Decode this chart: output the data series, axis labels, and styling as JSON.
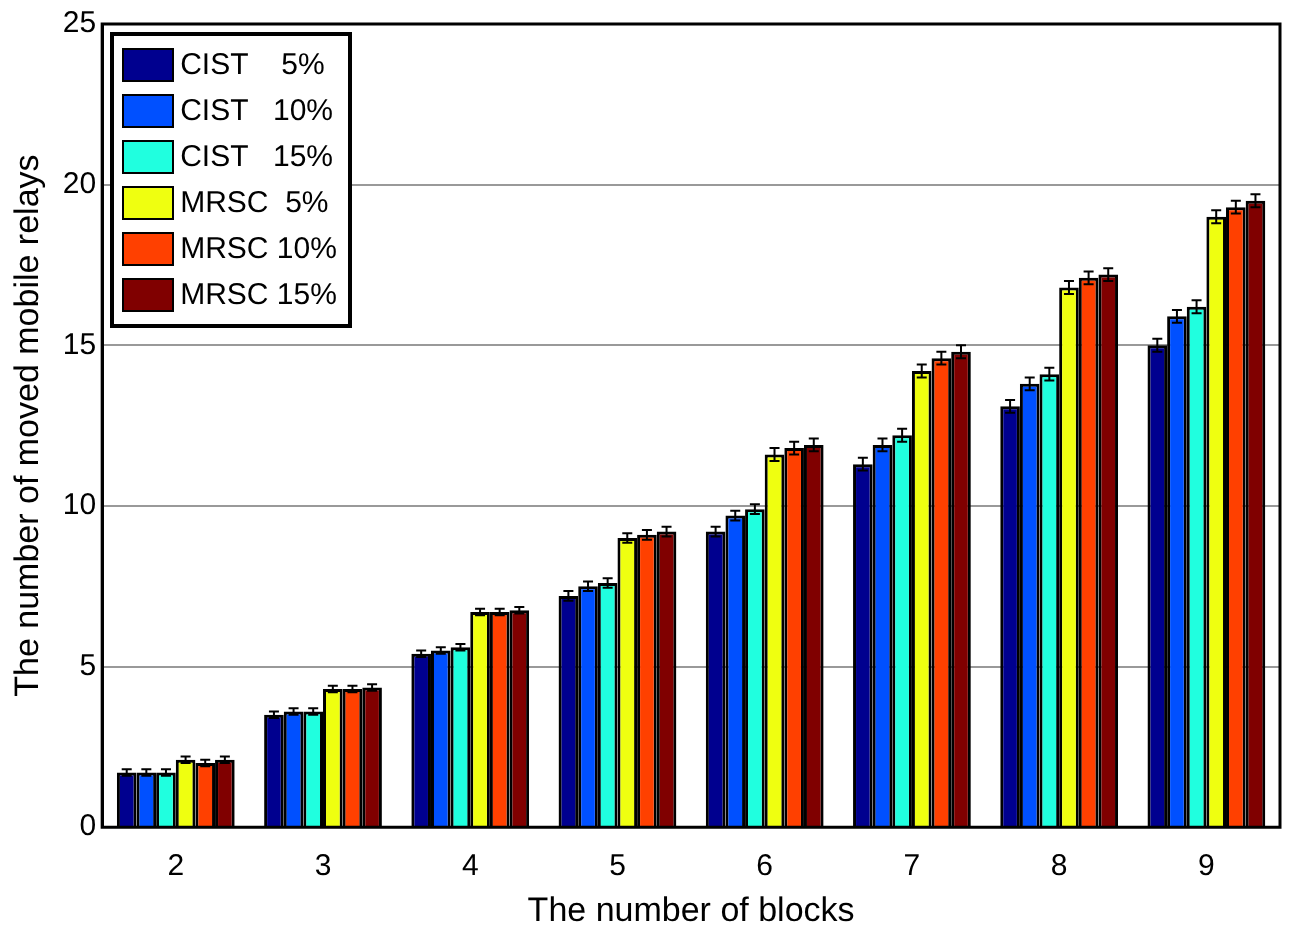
{
  "chart_data": {
    "type": "bar",
    "xlabel": "The number of blocks",
    "ylabel": "The number of moved mobile relays",
    "categories": [
      "2",
      "3",
      "4",
      "5",
      "6",
      "7",
      "8",
      "9"
    ],
    "series": [
      {
        "name": "CIST    5%",
        "color": "#00008f",
        "values": [
          1.7,
          3.5,
          5.4,
          7.2,
          9.2,
          11.3,
          13.1,
          15.0
        ],
        "errors": [
          0.1,
          0.1,
          0.1,
          0.15,
          0.15,
          0.2,
          0.2,
          0.2
        ]
      },
      {
        "name": "CIST   10%",
        "color": "#0050ff",
        "values": [
          1.7,
          3.6,
          5.5,
          7.5,
          9.7,
          11.9,
          13.8,
          15.9
        ],
        "errors": [
          0.1,
          0.1,
          0.1,
          0.15,
          0.15,
          0.2,
          0.2,
          0.2
        ]
      },
      {
        "name": "CIST   15%",
        "color": "#20ffdf",
        "values": [
          1.7,
          3.6,
          5.6,
          7.6,
          9.9,
          12.2,
          14.1,
          16.2
        ],
        "errors": [
          0.1,
          0.1,
          0.1,
          0.15,
          0.15,
          0.2,
          0.2,
          0.2
        ]
      },
      {
        "name": "MRSC  5%",
        "color": "#efff10",
        "values": [
          2.1,
          4.3,
          6.7,
          9.0,
          11.6,
          14.2,
          16.8,
          19.0
        ],
        "errors": [
          0.1,
          0.1,
          0.1,
          0.15,
          0.2,
          0.2,
          0.2,
          0.2
        ]
      },
      {
        "name": "MRSC 10%",
        "color": "#ff4000",
        "values": [
          2.0,
          4.3,
          6.7,
          9.1,
          11.8,
          14.6,
          17.1,
          19.3
        ],
        "errors": [
          0.1,
          0.1,
          0.1,
          0.15,
          0.2,
          0.2,
          0.2,
          0.2
        ]
      },
      {
        "name": "MRSC 15%",
        "color": "#800000",
        "values": [
          2.1,
          4.35,
          6.75,
          9.2,
          11.9,
          14.8,
          17.2,
          19.5
        ],
        "errors": [
          0.1,
          0.1,
          0.1,
          0.15,
          0.2,
          0.2,
          0.2,
          0.2
        ]
      }
    ],
    "ylim": [
      0,
      25
    ],
    "yticks": [
      0,
      5,
      10,
      15,
      20,
      25
    ],
    "grid": "y",
    "legend": "top left"
  }
}
